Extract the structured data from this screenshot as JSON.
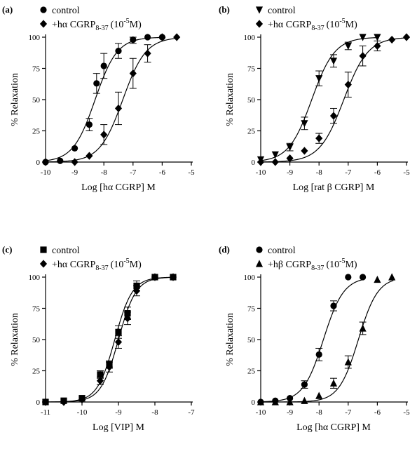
{
  "chart_data": [
    {
      "type": "scatter",
      "panel_label": "(a)",
      "xlabel": "Log  [hα CGRP]  M",
      "ylabel": "% Relaxation",
      "xlim": [
        -10,
        -5
      ],
      "ylim": [
        0,
        100
      ],
      "xticks": [
        "-10",
        "-9",
        "-8",
        "-7",
        "-6",
        "-5"
      ],
      "yticks": [
        "0",
        "25",
        "50",
        "75",
        "100"
      ],
      "legend": "top-left",
      "series": [
        {
          "name": "control",
          "name_sup": "",
          "marker": "circle",
          "x": [
            -10,
            -9.5,
            -9,
            -8.5,
            -8.25,
            -8,
            -7.5,
            -7,
            -6.5,
            -6
          ],
          "y": [
            0,
            1,
            11,
            30,
            63,
            77,
            89,
            98,
            100,
            100
          ],
          "err": [
            0,
            0,
            0,
            5,
            8,
            10,
            6,
            3,
            0,
            0
          ],
          "fit": {
            "ec50": -8.3,
            "hill": 1.15,
            "top": 100
          }
        },
        {
          "name": "+hα CGRP",
          "name_sub": "8-37",
          "name_suffix": "(10",
          "name_sup": "-5",
          "name_end": "M)",
          "marker": "diamond",
          "x": [
            -10,
            -9,
            -8.5,
            -8,
            -7.5,
            -7,
            -6.5,
            -6,
            -5.5
          ],
          "y": [
            0,
            0,
            5,
            22,
            43,
            71,
            87,
            100,
            100
          ],
          "err": [
            0,
            0,
            0,
            8,
            13,
            12,
            7,
            0,
            0
          ],
          "fit": {
            "ec50": -7.35,
            "hill": 1.1,
            "top": 100
          }
        }
      ]
    },
    {
      "type": "scatter",
      "panel_label": "(b)",
      "xlabel": "Log  [rat β CGRP]  M",
      "ylabel": "% Relaxation",
      "xlim": [
        -10,
        -5
      ],
      "ylim": [
        0,
        100
      ],
      "xticks": [
        "-10",
        "-9",
        "-8",
        "-7",
        "-6",
        "-5"
      ],
      "yticks": [
        "0",
        "25",
        "50",
        "75",
        "100"
      ],
      "legend": "top-left",
      "series": [
        {
          "name": "control",
          "name_sup": "",
          "marker": "triangle-down",
          "x": [
            -10,
            -9.5,
            -9,
            -8.5,
            -8,
            -7.5,
            -7,
            -6.5,
            -6
          ],
          "y": [
            2,
            6,
            12,
            31,
            67,
            81,
            93,
            100,
            100
          ],
          "err": [
            0,
            0,
            3,
            5,
            6,
            5,
            3,
            0,
            0
          ],
          "fit": {
            "ec50": -8.25,
            "hill": 1.1,
            "top": 100
          }
        },
        {
          "name": "+hα CGRP",
          "name_sub": "8-37",
          "name_suffix": "(10",
          "name_sup": "-5",
          "name_end": "M)",
          "marker": "diamond",
          "x": [
            -10,
            -9.5,
            -9,
            -8.5,
            -8,
            -7.5,
            -7,
            -6.5,
            -6,
            -5.5,
            -5
          ],
          "y": [
            0,
            0,
            3,
            9,
            19,
            37,
            62,
            85,
            93,
            98,
            100
          ],
          "err": [
            0,
            0,
            0,
            0,
            4,
            6,
            10,
            8,
            4,
            0,
            0
          ],
          "fit": {
            "ec50": -7.15,
            "hill": 1.05,
            "top": 100
          }
        }
      ]
    },
    {
      "type": "scatter",
      "panel_label": "(c)",
      "xlabel": "Log  [VIP]  M",
      "ylabel": "% Relaxation",
      "xlim": [
        -11,
        -7
      ],
      "ylim": [
        0,
        100
      ],
      "xticks": [
        "-11",
        "-10",
        "-9",
        "-8",
        "-7"
      ],
      "yticks": [
        "0",
        "25",
        "50",
        "75",
        "100"
      ],
      "legend": "top-left",
      "series": [
        {
          "name": "control",
          "name_sup": "",
          "marker": "square",
          "x": [
            -11,
            -10.5,
            -10,
            -9.5,
            -9.25,
            -9,
            -8.75,
            -8.5,
            -8,
            -7.5
          ],
          "y": [
            0,
            1,
            3,
            22,
            30,
            56,
            71,
            93,
            100,
            100
          ],
          "err": [
            0,
            0,
            0,
            3,
            3,
            5,
            5,
            4,
            0,
            0
          ],
          "fit": {
            "ec50": -9.1,
            "hill": 1.8,
            "top": 100
          }
        },
        {
          "name": "+hα CGRP",
          "name_sub": "8-37",
          "name_suffix": "(10",
          "name_sup": "-5",
          "name_end": "M)",
          "marker": "diamond",
          "x": [
            -11,
            -10.5,
            -10,
            -9.5,
            -9.25,
            -9,
            -8.75,
            -8.5,
            -8,
            -7.5
          ],
          "y": [
            0,
            0,
            2,
            17,
            28,
            48,
            67,
            89,
            100,
            100
          ],
          "err": [
            0,
            0,
            0,
            3,
            4,
            5,
            5,
            4,
            0,
            0
          ],
          "fit": {
            "ec50": -9.0,
            "hill": 1.8,
            "top": 100
          }
        }
      ]
    },
    {
      "type": "scatter",
      "panel_label": "(d)",
      "xlabel": "Log  [hα CGRP]  M",
      "ylabel": "% Relaxation",
      "xlim": [
        -10,
        -5
      ],
      "ylim": [
        0,
        100
      ],
      "xticks": [
        "-10",
        "-9",
        "-8",
        "-7",
        "-6",
        "-5"
      ],
      "yticks": [
        "0",
        "25",
        "50",
        "75",
        "100"
      ],
      "legend": "top-left",
      "series": [
        {
          "name": "control",
          "name_sup": "",
          "marker": "circle",
          "x": [
            -10,
            -9.5,
            -9,
            -8.5,
            -8,
            -7.5,
            -7,
            -6.5
          ],
          "y": [
            0,
            1,
            3,
            14,
            38,
            77,
            100,
            100
          ],
          "err": [
            0,
            0,
            0,
            3,
            5,
            4,
            0,
            0
          ],
          "fit": {
            "ec50": -7.85,
            "hill": 1.25,
            "top": 100
          }
        },
        {
          "name": "+hβ CGRP",
          "name_sub": "8-37",
          "name_suffix": "(10",
          "name_sup": "-5",
          "name_end": "M)",
          "marker": "triangle",
          "x": [
            -10,
            -9.5,
            -9,
            -8.5,
            -8,
            -7.5,
            -7,
            -6.5,
            -6,
            -5.5
          ],
          "y": [
            0,
            0,
            0,
            1,
            5,
            15,
            32,
            59,
            98,
            100
          ],
          "err": [
            0,
            0,
            0,
            0,
            0,
            4,
            5,
            5,
            0,
            0
          ],
          "fit": {
            "ec50": -6.65,
            "hill": 1.3,
            "top": 100
          }
        }
      ]
    }
  ]
}
